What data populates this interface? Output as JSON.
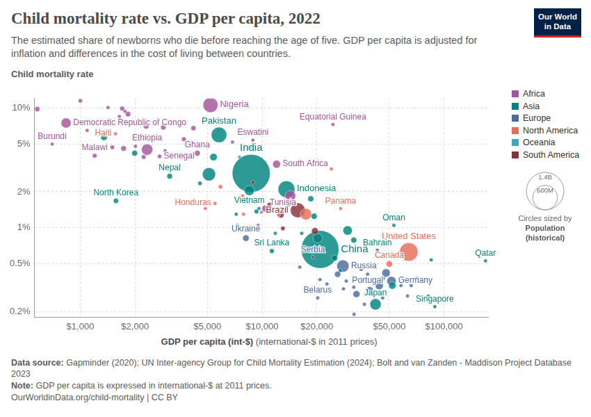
{
  "chart_data": {
    "type": "bubble",
    "title": "Child mortality rate vs. GDP per capita, 2022",
    "subtitle": "The estimated share of newborns who die before reaching the age of five. GDP per capita is adjusted for inflation and differences in the cost of living between countries.",
    "logo": [
      "Our World",
      "in Data"
    ],
    "y_label": "Child mortality rate",
    "x_label": "GDP per capita (int-$)",
    "x_label_note": "(international-$ in 2011 prices)",
    "log": true,
    "grid": true,
    "legend": "right",
    "xlim": [
      560,
      175000
    ],
    "xticks": [
      {
        "value": 1000,
        "label": "$1,000"
      },
      {
        "value": 2000,
        "label": "$2,000"
      },
      {
        "value": 5000,
        "label": "$5,000"
      },
      {
        "value": 10000,
        "label": "$10,000"
      },
      {
        "value": 20000,
        "label": "$20,000"
      },
      {
        "value": 50000,
        "label": "$50,000"
      },
      {
        "value": 100000,
        "label": "$100,000"
      }
    ],
    "ylim": [
      0.18,
      12
    ],
    "yticks": [
      {
        "value": 0.2,
        "label": "0.2%"
      },
      {
        "value": 0.5,
        "label": "0.5%"
      },
      {
        "value": 1,
        "label": "1%"
      },
      {
        "value": 2,
        "label": "2%"
      },
      {
        "value": 5,
        "label": "5%"
      },
      {
        "value": 10,
        "label": "10%"
      }
    ],
    "series": [
      {
        "name": "Africa",
        "color": "#a2559c",
        "x": [
          5200,
          835,
          700,
          1200,
          2330,
          2730,
          4400,
          8900,
          12000,
          24500,
          13000,
          580,
          1000,
          1420,
          1700,
          1760,
          1830,
          1640,
          2300,
          2860,
          1090,
          1730,
          2010,
          2230,
          3710,
          4190,
          6870,
          8600,
          8200,
          10400,
          14300,
          2930,
          1500,
          9500
        ],
        "values": [
          10.6,
          7.5,
          5,
          4,
          4.5,
          3.95,
          4.2,
          5.4,
          3.4,
          7.3,
          1.4,
          9.8,
          11.5,
          10.1,
          9.9,
          9.4,
          8.9,
          8.5,
          7.1,
          6.9,
          6.5,
          4.6,
          4.8,
          3.9,
          5.5,
          6.8,
          5.2,
          4.7,
          1.7,
          1.45,
          1.85,
          4.4,
          4.7,
          1.05
        ],
        "sizes": [
          219000000,
          100000000,
          13000000,
          20000000,
          125000000,
          17000000,
          33000000,
          1200000,
          60000000,
          1700000,
          12000000,
          26000000,
          17000000,
          5000000,
          22000000,
          8000000,
          28000000,
          14000000,
          36000000,
          27000000,
          10000000,
          30000000,
          6000000,
          20000000,
          20000000,
          26000000,
          2500000,
          2300000,
          37000000,
          45000000,
          110000000,
          12000000,
          19000000,
          600000
        ],
        "labels": [
          "Nigeria",
          "Democratic Republic of Congo",
          "Burundi",
          "Malawi",
          "Ethiopia",
          "Senegal",
          "Ghana",
          "Eswatini",
          "South Africa",
          "Equatorial Guinea",
          "Tunisia",
          null,
          null,
          null,
          null,
          null,
          null,
          null,
          null,
          null,
          null,
          null,
          null,
          null,
          null,
          null,
          null,
          null,
          null,
          null,
          null,
          null,
          null,
          null
        ]
      },
      {
        "name": "Asia",
        "color": "#00847e",
        "x": [
          5790,
          8700,
          3100,
          1570,
          8500,
          13600,
          20800,
          11300,
          53000,
          43000,
          169000,
          89000,
          42000,
          1350,
          1990,
          5400,
          5100,
          4550,
          7300,
          9600,
          18500,
          19300,
          20200,
          29500,
          25000,
          26900,
          31900,
          80000,
          85000,
          52000,
          11800,
          16500,
          9300,
          7200
        ],
        "values": [
          5.97,
          2.85,
          2.7,
          1.68,
          2.05,
          2.1,
          0.66,
          0.64,
          1.05,
          0.65,
          0.53,
          0.22,
          0.23,
          5.7,
          4.2,
          3.9,
          2.8,
          2.35,
          1.05,
          1.45,
          1.75,
          1.25,
          0.82,
          0.95,
          0.56,
          0.44,
          0.79,
          0.86,
          0.54,
          0.33,
          0.9,
          0.9,
          1.37,
          1.3
        ],
        "sizes": [
          235000000,
          1420000000,
          30000000,
          26000000,
          98000000,
          275000000,
          1410000000,
          22000000,
          4600000,
          1500000,
          2700000,
          6000000,
          124000000,
          41000000,
          33000000,
          54000000,
          171000000,
          18000000,
          3500000,
          10000000,
          35000000,
          36000000,
          88000000,
          85000000,
          36000000,
          10000000,
          34000000,
          4300000,
          9400000,
          52000000,
          7000000,
          10000000,
          20000000,
          10000000
        ],
        "labels": [
          "Pakistan",
          "India",
          "Nepal",
          "North Korea",
          "Vietnam",
          "Indonesia",
          "China",
          "Sri Lanka",
          "Oman",
          "Bahrain",
          "Qatar",
          "Singapore",
          "Japan",
          null,
          null,
          null,
          null,
          null,
          null,
          null,
          null,
          null,
          null,
          null,
          null,
          null,
          null,
          null,
          null,
          null,
          null,
          null,
          null,
          null
        ]
      },
      {
        "name": "Europe",
        "color": "#4c6a9c",
        "x": [
          8140,
          19000,
          27800,
          38000,
          51400,
          20200,
          16100,
          20800,
          29000,
          31900,
          35000,
          26000,
          33000,
          39000,
          44000,
          48000,
          46000,
          58000,
          66000,
          71000,
          82000,
          32000,
          28000,
          22700,
          36500,
          63000
        ],
        "values": [
          0.82,
          0.57,
          0.48,
          0.41,
          0.36,
          0.26,
          0.47,
          0.37,
          0.36,
          0.32,
          0.45,
          0.41,
          0.28,
          0.3,
          0.33,
          0.42,
          0.26,
          0.33,
          0.33,
          0.38,
          0.27,
          0.19,
          0.31,
          0.34,
          0.23,
          0.27
        ],
        "sizes": [
          40000000,
          6700000,
          145000000,
          10300000,
          84000000,
          9200000,
          2800000,
          6500000,
          10000000,
          5000000,
          4000000,
          38000000,
          47000000,
          59000000,
          65000000,
          67000000,
          10000000,
          5500000,
          9000000,
          8500000,
          5400000,
          2000000,
          3000000,
          2500000,
          1300000,
          5600000
        ],
        "labels": [
          "Ukraine",
          "Serbia",
          "Russia",
          "Portugal",
          "Germany",
          "Belarus",
          null,
          null,
          null,
          null,
          null,
          null,
          null,
          null,
          null,
          null,
          null,
          null,
          null,
          null,
          null,
          null,
          null,
          null,
          null,
          null
        ]
      },
      {
        "name": "North America",
        "color": "#e56e5a",
        "x": [
          1560,
          5500,
          27000,
          64000,
          50000,
          17400,
          5900,
          7800,
          9900,
          24000,
          4870,
          7900,
          12300
        ],
        "values": [
          6.1,
          1.6,
          1.45,
          0.63,
          0.5,
          1.3,
          2.2,
          1.85,
          1.35,
          3.1,
          1.45,
          1.3,
          1.28
        ],
        "sizes": [
          11600000,
          10400000,
          4400000,
          335000000,
          39000000,
          128000000,
          18000000,
          6000000,
          11000000,
          1500000,
          6900000,
          3000000,
          6000000
        ],
        "labels": [
          "Haiti",
          "Honduras",
          "Panama",
          "United States",
          "Canada",
          null,
          null,
          null,
          null,
          null,
          null,
          null,
          null
        ]
      },
      {
        "name": "Oceania",
        "color": "#38aaba",
        "x": [
          7500,
          46000,
          36000,
          78000
        ],
        "values": [
          3.9,
          0.38,
          0.48,
          0.86
        ],
        "sizes": [
          10000000,
          26000000,
          5100000,
          400000
        ],
        "labels": [
          null,
          null,
          null,
          null
        ]
      },
      {
        "name": "South America",
        "color": "#883039",
        "x": [
          15700,
          12700,
          13000,
          19500,
          8900,
          13800,
          11000,
          10800
        ],
        "values": [
          1.4,
          1.28,
          0.99,
          0.94,
          2.4,
          1.6,
          1.55,
          1.38
        ],
        "sizes": [
          215000000,
          34000000,
          19000000,
          46000000,
          12000000,
          52000000,
          28000000,
          18000000
        ],
        "labels": [
          "Brazil",
          null,
          null,
          null,
          null,
          null,
          null,
          null
        ]
      }
    ],
    "size_legend": {
      "values": [
        1400000000,
        600000000
      ],
      "value_labels": [
        "1.4B",
        "600M"
      ],
      "title": "Circles sized by",
      "measure": "Population (historical)"
    },
    "sources": {
      "label": "Data source:",
      "text": "Gapminder (2020); UN Inter-agency Group for Child Mortality Estimation (2024); Bolt and van Zanden - Maddison Project Database 2023"
    },
    "note": {
      "label": "Note:",
      "text": "GDP per capita is expressed in international-$ at 2011 prices."
    },
    "footer": "OurWorldinData.org/child-mortality | CC BY"
  }
}
